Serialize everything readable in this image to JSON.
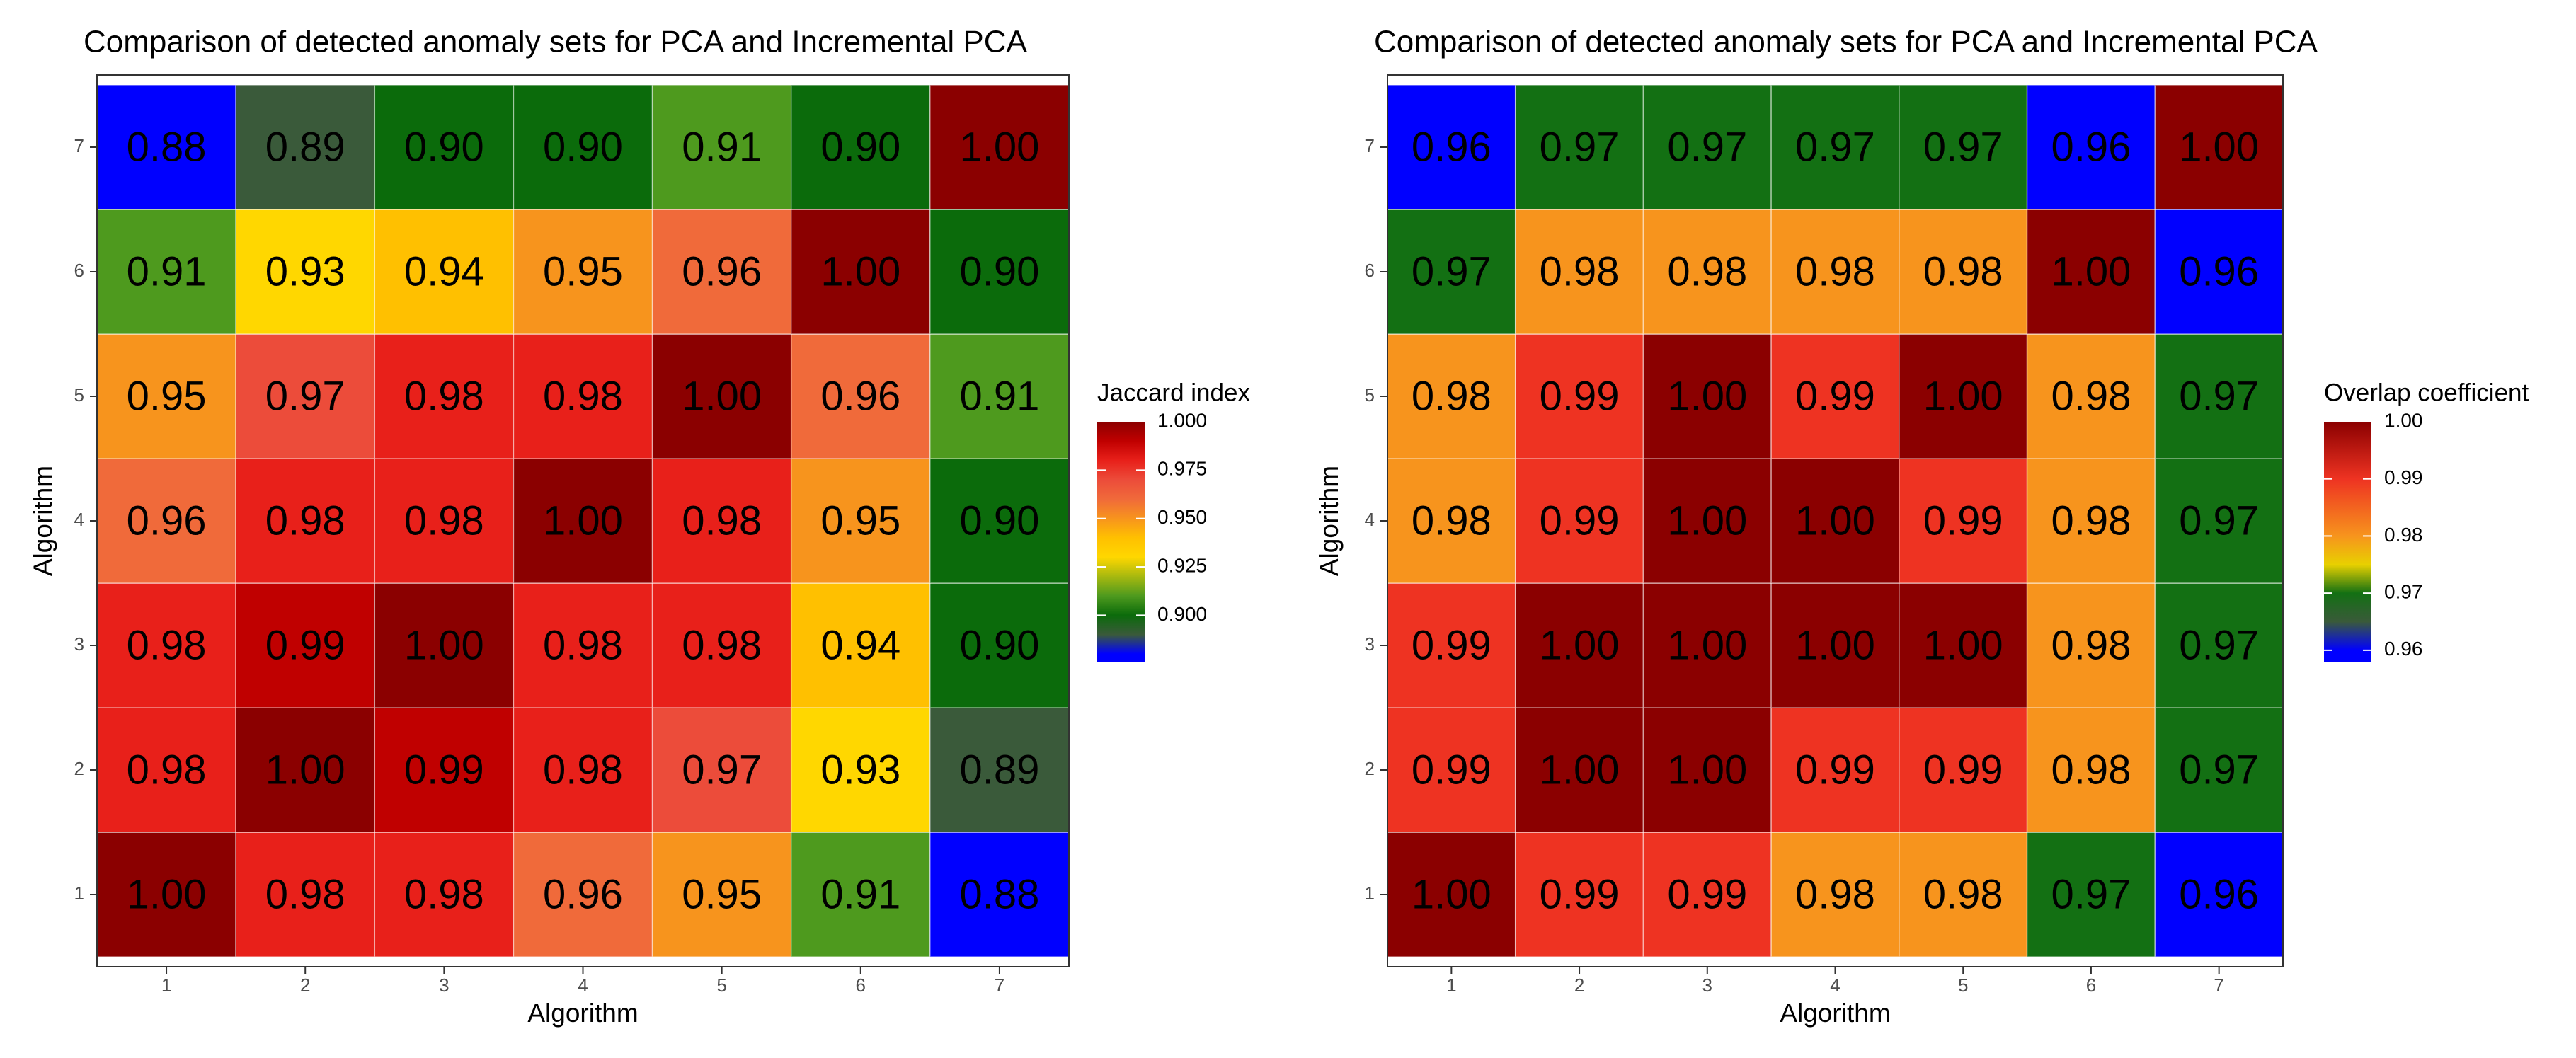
{
  "chart_data": [
    {
      "type": "heatmap",
      "title": "Comparison of detected anomaly sets for PCA and Incremental PCA",
      "x_label": "Algorithm",
      "y_label": "Algorithm",
      "x_categories": [
        "1",
        "2",
        "3",
        "4",
        "5",
        "6",
        "7"
      ],
      "y_categories": [
        "1",
        "2",
        "3",
        "4",
        "5",
        "6",
        "7"
      ],
      "values": [
        [
          1.0,
          0.98,
          0.98,
          0.96,
          0.95,
          0.91,
          0.88
        ],
        [
          0.98,
          1.0,
          0.99,
          0.98,
          0.97,
          0.93,
          0.89
        ],
        [
          0.98,
          0.99,
          1.0,
          0.98,
          0.98,
          0.94,
          0.9
        ],
        [
          0.96,
          0.98,
          0.98,
          1.0,
          0.98,
          0.95,
          0.9
        ],
        [
          0.95,
          0.97,
          0.98,
          0.98,
          1.0,
          0.96,
          0.91
        ],
        [
          0.91,
          0.93,
          0.94,
          0.95,
          0.96,
          1.0,
          0.9
        ],
        [
          0.88,
          0.89,
          0.9,
          0.9,
          0.91,
          0.9,
          1.0
        ]
      ],
      "value_labels": [
        [
          "1.00",
          "0.98",
          "0.98",
          "0.96",
          "0.95",
          "0.91",
          "0.88"
        ],
        [
          "0.98",
          "1.00",
          "0.99",
          "0.98",
          "0.97",
          "0.93",
          "0.89"
        ],
        [
          "0.98",
          "0.99",
          "1.00",
          "0.98",
          "0.98",
          "0.94",
          "0.90"
        ],
        [
          "0.96",
          "0.98",
          "0.98",
          "1.00",
          "0.98",
          "0.95",
          "0.90"
        ],
        [
          "0.95",
          "0.97",
          "0.98",
          "0.98",
          "1.00",
          "0.96",
          "0.91"
        ],
        [
          "0.91",
          "0.93",
          "0.94",
          "0.95",
          "0.96",
          "1.00",
          "0.90"
        ],
        [
          "0.88",
          "0.89",
          "0.90",
          "0.90",
          "0.91",
          "0.90",
          "1.00"
        ]
      ],
      "legend_title": "Jaccard index",
      "clim": [
        0.876,
        1.0
      ],
      "cticks": [
        {
          "value": 0.9,
          "label": "0.900"
        },
        {
          "value": 0.925,
          "label": "0.925"
        },
        {
          "value": 0.95,
          "label": "0.950"
        },
        {
          "value": 0.975,
          "label": "0.975"
        },
        {
          "value": 1.0,
          "label": "1.000"
        }
      ],
      "colorscale": [
        {
          "value": 0.876,
          "color": "#0000ff"
        },
        {
          "value": 0.88,
          "color": "#0000ff"
        },
        {
          "value": 0.89,
          "color": "#3a5a3a"
        },
        {
          "value": 0.9,
          "color": "#0b6b0b"
        },
        {
          "value": 0.91,
          "color": "#4e9a1e"
        },
        {
          "value": 0.93,
          "color": "#ffd700"
        },
        {
          "value": 0.94,
          "color": "#ffc000"
        },
        {
          "value": 0.95,
          "color": "#f7941d"
        },
        {
          "value": 0.96,
          "color": "#f06a3a"
        },
        {
          "value": 0.97,
          "color": "#ec4c3a"
        },
        {
          "value": 0.98,
          "color": "#e8201a"
        },
        {
          "value": 0.99,
          "color": "#c00000"
        },
        {
          "value": 1.0,
          "color": "#8b0000"
        }
      ]
    },
    {
      "type": "heatmap",
      "title": "Comparison of detected anomaly sets for PCA and Incremental PCA",
      "x_label": "Algorithm",
      "y_label": "Algorithm",
      "x_categories": [
        "1",
        "2",
        "3",
        "4",
        "5",
        "6",
        "7"
      ],
      "y_categories": [
        "1",
        "2",
        "3",
        "4",
        "5",
        "6",
        "7"
      ],
      "values": [
        [
          1.0,
          0.99,
          0.99,
          0.98,
          0.98,
          0.97,
          0.96
        ],
        [
          0.99,
          1.0,
          1.0,
          0.99,
          0.99,
          0.98,
          0.97
        ],
        [
          0.99,
          1.0,
          1.0,
          1.0,
          1.0,
          0.98,
          0.97
        ],
        [
          0.98,
          0.99,
          1.0,
          1.0,
          0.99,
          0.98,
          0.97
        ],
        [
          0.98,
          0.99,
          1.0,
          0.99,
          1.0,
          0.98,
          0.97
        ],
        [
          0.97,
          0.98,
          0.98,
          0.98,
          0.98,
          1.0,
          0.96
        ],
        [
          0.96,
          0.97,
          0.97,
          0.97,
          0.97,
          0.96,
          1.0
        ]
      ],
      "value_labels": [
        [
          "1.00",
          "0.99",
          "0.99",
          "0.98",
          "0.98",
          "0.97",
          "0.96"
        ],
        [
          "0.99",
          "1.00",
          "1.00",
          "0.99",
          "0.99",
          "0.98",
          "0.97"
        ],
        [
          "0.99",
          "1.00",
          "1.00",
          "1.00",
          "1.00",
          "0.98",
          "0.97"
        ],
        [
          "0.98",
          "0.99",
          "1.00",
          "1.00",
          "0.99",
          "0.98",
          "0.97"
        ],
        [
          "0.98",
          "0.99",
          "1.00",
          "0.99",
          "1.00",
          "0.98",
          "0.97"
        ],
        [
          "0.97",
          "0.98",
          "0.98",
          "0.98",
          "0.98",
          "1.00",
          "0.96"
        ],
        [
          "0.96",
          "0.97",
          "0.97",
          "0.97",
          "0.97",
          "0.96",
          "1.00"
        ]
      ],
      "legend_title": "Overlap coefficient",
      "clim": [
        0.958,
        1.0
      ],
      "cticks": [
        0.96,
        0.97,
        0.98,
        0.99,
        {
          "value": 1.0,
          "label": "1.00"
        }
      ],
      "colorscale": [
        {
          "value": 0.958,
          "color": "#0000ff"
        },
        {
          "value": 0.96,
          "color": "#0000ff"
        },
        {
          "value": 0.965,
          "color": "#3a5a3a"
        },
        {
          "value": 0.97,
          "color": "#137013"
        },
        {
          "value": 0.975,
          "color": "#e8d000"
        },
        {
          "value": 0.98,
          "color": "#f7941d"
        },
        {
          "value": 0.99,
          "color": "#ee3322"
        },
        {
          "value": 1.0,
          "color": "#8b0000"
        }
      ]
    }
  ]
}
